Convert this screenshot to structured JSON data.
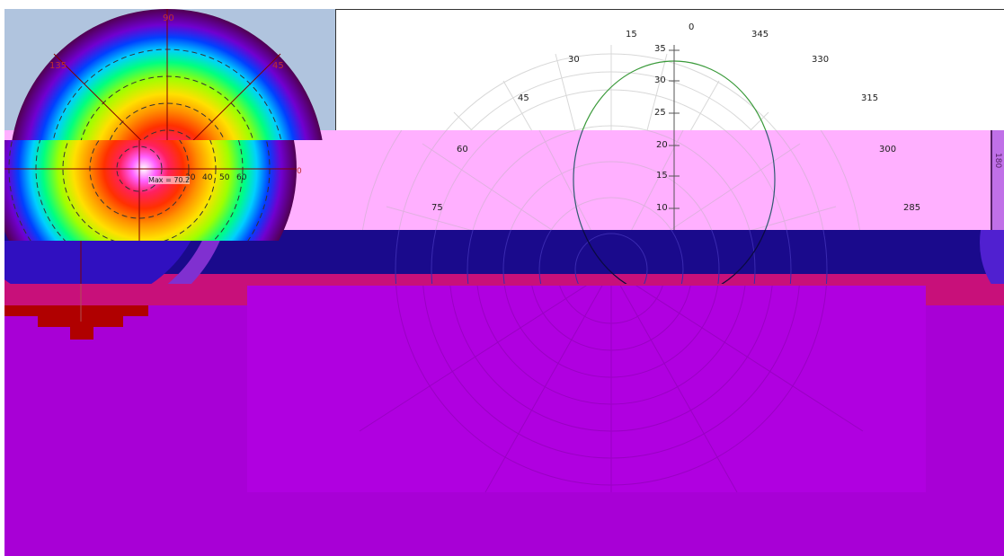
{
  "left_plot": {
    "angle_labels": [
      "90",
      "135",
      "45",
      "0"
    ],
    "radius_labels": [
      "30",
      "40",
      "50",
      "60"
    ],
    "max_label": "Max = 70.2"
  },
  "right_plot": {
    "angle_labels_upper": [
      "0",
      "15",
      "345",
      "30",
      "330",
      "45",
      "315"
    ],
    "angle_labels_lower": [
      "60",
      "300",
      "75",
      "285"
    ],
    "radius_ticks_upper": [
      "35",
      "30",
      "25"
    ],
    "radius_ticks_lower": [
      "20",
      "15",
      "10"
    ],
    "side_label": "180"
  },
  "colors": {
    "left_panel_bg": "#b0c4de",
    "pink_band": "#ffb0ff",
    "navy_band": "#1a0a8c",
    "magenta_band": "#c8107a",
    "purple_fill": "#a800d6",
    "purple_inner": "#b000e0",
    "dark_red": "#b00000",
    "curve_green": "#3a9a3a",
    "grid_gray": "#cfcfcf",
    "label_red": "#c03030"
  }
}
